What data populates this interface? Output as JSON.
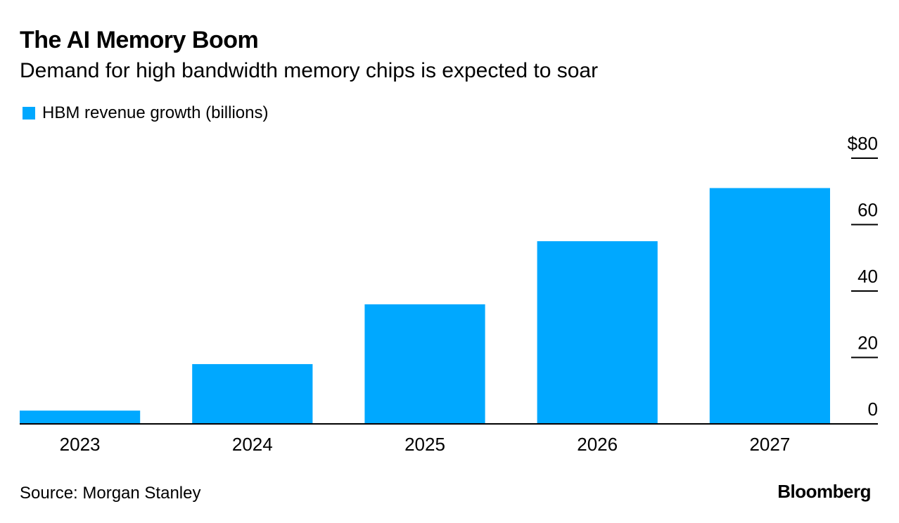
{
  "title": "The AI Memory Boom",
  "subtitle": "Demand for high bandwidth memory chips is expected to soar",
  "colors": {
    "bar": "#00A8FF",
    "axis": "#000000",
    "background": "#FFFFFF"
  },
  "chart_data": {
    "type": "bar",
    "categories": [
      "2023",
      "2024",
      "2025",
      "2026",
      "2027"
    ],
    "series": [
      {
        "name": "HBM revenue growth (billions)",
        "values": [
          4,
          18,
          36,
          55,
          71
        ]
      }
    ],
    "yticks": [
      0,
      20,
      40,
      60,
      80
    ],
    "ytick_labels": [
      "0",
      "20",
      "40",
      "60",
      "$80"
    ],
    "ylim": [
      0,
      80
    ],
    "xlabel": "",
    "ylabel": "",
    "y_axis_side": "right",
    "grid": false,
    "legend": "top-left"
  },
  "footer": {
    "source": "Source: Morgan Stanley",
    "brand": "Bloomberg"
  }
}
